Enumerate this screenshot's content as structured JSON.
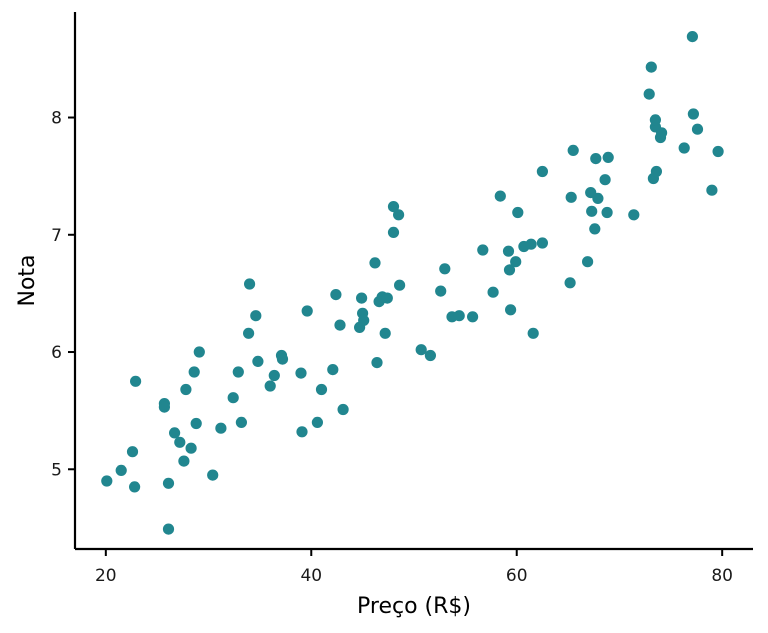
{
  "chart_data": {
    "type": "scatter",
    "xlabel": "Preço (R$)",
    "ylabel": "Nota",
    "xlim": [
      17,
      83
    ],
    "ylim": [
      4.32,
      8.9
    ],
    "x_ticks": [
      20,
      40,
      60,
      80
    ],
    "y_ticks": [
      5,
      6,
      7,
      8
    ],
    "x_tick_labels": [
      "20",
      "40",
      "60",
      "80"
    ],
    "y_tick_labels": [
      "5",
      "6",
      "7",
      "8"
    ],
    "grid": false,
    "point_color": "#21868f",
    "points": [
      {
        "x": 20.1,
        "y": 4.9
      },
      {
        "x": 21.5,
        "y": 4.99
      },
      {
        "x": 22.6,
        "y": 5.15
      },
      {
        "x": 22.8,
        "y": 4.85
      },
      {
        "x": 22.9,
        "y": 5.75
      },
      {
        "x": 25.7,
        "y": 5.56
      },
      {
        "x": 25.7,
        "y": 5.53
      },
      {
        "x": 26.1,
        "y": 4.88
      },
      {
        "x": 26.1,
        "y": 4.49
      },
      {
        "x": 26.7,
        "y": 5.31
      },
      {
        "x": 27.2,
        "y": 5.23
      },
      {
        "x": 27.6,
        "y": 5.07
      },
      {
        "x": 27.8,
        "y": 5.68
      },
      {
        "x": 28.3,
        "y": 5.18
      },
      {
        "x": 28.6,
        "y": 5.83
      },
      {
        "x": 28.8,
        "y": 5.39
      },
      {
        "x": 29.1,
        "y": 6.0
      },
      {
        "x": 30.4,
        "y": 4.95
      },
      {
        "x": 31.2,
        "y": 5.35
      },
      {
        "x": 32.4,
        "y": 5.61
      },
      {
        "x": 32.9,
        "y": 5.83
      },
      {
        "x": 33.2,
        "y": 5.4
      },
      {
        "x": 33.9,
        "y": 6.16
      },
      {
        "x": 34.0,
        "y": 6.58
      },
      {
        "x": 34.6,
        "y": 6.31
      },
      {
        "x": 34.8,
        "y": 5.92
      },
      {
        "x": 36.0,
        "y": 5.71
      },
      {
        "x": 36.4,
        "y": 5.8
      },
      {
        "x": 37.1,
        "y": 5.97
      },
      {
        "x": 37.2,
        "y": 5.94
      },
      {
        "x": 39.0,
        "y": 5.82
      },
      {
        "x": 39.1,
        "y": 5.32
      },
      {
        "x": 39.6,
        "y": 6.35
      },
      {
        "x": 40.6,
        "y": 5.4
      },
      {
        "x": 41.0,
        "y": 5.68
      },
      {
        "x": 42.1,
        "y": 5.85
      },
      {
        "x": 42.4,
        "y": 6.49
      },
      {
        "x": 42.8,
        "y": 6.23
      },
      {
        "x": 43.1,
        "y": 5.51
      },
      {
        "x": 44.7,
        "y": 6.21
      },
      {
        "x": 44.9,
        "y": 6.46
      },
      {
        "x": 45.0,
        "y": 6.33
      },
      {
        "x": 45.1,
        "y": 6.27
      },
      {
        "x": 46.2,
        "y": 6.76
      },
      {
        "x": 46.4,
        "y": 5.91
      },
      {
        "x": 46.6,
        "y": 6.43
      },
      {
        "x": 46.9,
        "y": 6.47
      },
      {
        "x": 47.2,
        "y": 6.16
      },
      {
        "x": 47.4,
        "y": 6.46
      },
      {
        "x": 48.0,
        "y": 7.02
      },
      {
        "x": 48.0,
        "y": 7.24
      },
      {
        "x": 48.5,
        "y": 7.17
      },
      {
        "x": 48.6,
        "y": 6.57
      },
      {
        "x": 50.7,
        "y": 6.02
      },
      {
        "x": 51.6,
        "y": 5.97
      },
      {
        "x": 52.6,
        "y": 6.52
      },
      {
        "x": 53.0,
        "y": 6.71
      },
      {
        "x": 53.7,
        "y": 6.3
      },
      {
        "x": 54.4,
        "y": 6.31
      },
      {
        "x": 55.7,
        "y": 6.3
      },
      {
        "x": 56.7,
        "y": 6.87
      },
      {
        "x": 57.7,
        "y": 6.51
      },
      {
        "x": 58.4,
        "y": 7.33
      },
      {
        "x": 59.2,
        "y": 6.86
      },
      {
        "x": 59.3,
        "y": 6.7
      },
      {
        "x": 59.4,
        "y": 6.36
      },
      {
        "x": 59.9,
        "y": 6.77
      },
      {
        "x": 60.1,
        "y": 7.19
      },
      {
        "x": 60.7,
        "y": 6.9
      },
      {
        "x": 61.4,
        "y": 6.92
      },
      {
        "x": 61.6,
        "y": 6.16
      },
      {
        "x": 62.5,
        "y": 7.54
      },
      {
        "x": 62.5,
        "y": 6.93
      },
      {
        "x": 65.2,
        "y": 6.59
      },
      {
        "x": 65.3,
        "y": 7.32
      },
      {
        "x": 65.5,
        "y": 7.72
      },
      {
        "x": 66.9,
        "y": 6.77
      },
      {
        "x": 67.2,
        "y": 7.36
      },
      {
        "x": 67.3,
        "y": 7.2
      },
      {
        "x": 67.6,
        "y": 7.05
      },
      {
        "x": 67.7,
        "y": 7.65
      },
      {
        "x": 67.9,
        "y": 7.31
      },
      {
        "x": 68.6,
        "y": 7.47
      },
      {
        "x": 68.8,
        "y": 7.19
      },
      {
        "x": 68.9,
        "y": 7.66
      },
      {
        "x": 71.4,
        "y": 7.17
      },
      {
        "x": 72.9,
        "y": 8.2
      },
      {
        "x": 73.1,
        "y": 8.43
      },
      {
        "x": 73.3,
        "y": 7.48
      },
      {
        "x": 73.5,
        "y": 7.92
      },
      {
        "x": 73.5,
        "y": 7.98
      },
      {
        "x": 73.6,
        "y": 7.54
      },
      {
        "x": 74.0,
        "y": 7.83
      },
      {
        "x": 74.1,
        "y": 7.87
      },
      {
        "x": 76.3,
        "y": 7.74
      },
      {
        "x": 77.1,
        "y": 8.69
      },
      {
        "x": 77.2,
        "y": 8.03
      },
      {
        "x": 77.6,
        "y": 7.9
      },
      {
        "x": 79.0,
        "y": 7.38
      },
      {
        "x": 79.6,
        "y": 7.71
      }
    ]
  }
}
